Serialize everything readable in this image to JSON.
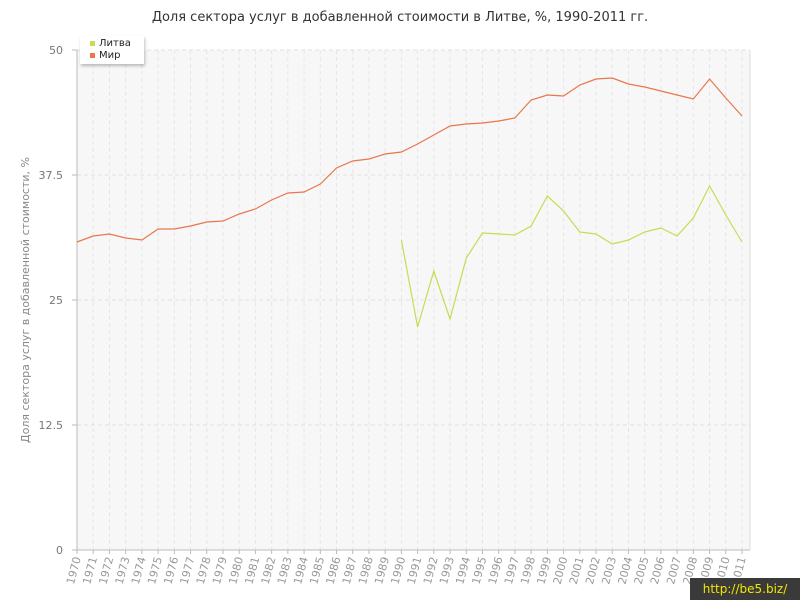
{
  "chart_data": {
    "type": "line",
    "title": "Доля сектора услуг в добавленной стоимости в Литве, %, 1990-2011 гг.",
    "xlabel": "",
    "ylabel": "Доля сектора услуг в добавленной стоимости, %",
    "ylim": [
      0,
      50
    ],
    "yticks": [
      "0",
      "12.5",
      "25",
      "37.5",
      "50"
    ],
    "grid": true,
    "legend_position": "top-left",
    "x": [
      "1970",
      "1971",
      "1972",
      "1973",
      "1974",
      "1975",
      "1976",
      "1977",
      "1978",
      "1979",
      "1980",
      "1981",
      "1982",
      "1983",
      "1984",
      "1985",
      "1986",
      "1987",
      "1988",
      "1989",
      "1990",
      "1991",
      "1992",
      "1993",
      "1994",
      "1995",
      "1996",
      "1997",
      "1998",
      "1999",
      "2000",
      "2001",
      "2002",
      "2003",
      "2004",
      "2005",
      "2006",
      "2007",
      "2008",
      "2009",
      "2010",
      "2011"
    ],
    "series": [
      {
        "name": "Литва",
        "color": "#c5dd52",
        "values": [
          null,
          null,
          null,
          null,
          null,
          null,
          null,
          null,
          null,
          null,
          null,
          null,
          null,
          null,
          null,
          null,
          null,
          null,
          null,
          null,
          31.0,
          22.3,
          27.9,
          23.1,
          29.2,
          31.7,
          31.6,
          31.5,
          32.4,
          35.4,
          33.9,
          31.8,
          31.6,
          30.6,
          31.0,
          31.8,
          32.2,
          31.4,
          33.2,
          36.4,
          33.5,
          30.8
        ]
      },
      {
        "name": "Мир",
        "color": "#e8774c",
        "values": [
          30.8,
          31.4,
          31.6,
          31.2,
          31.0,
          32.1,
          32.1,
          32.4,
          32.8,
          32.9,
          33.6,
          34.1,
          35.0,
          35.7,
          35.8,
          36.6,
          38.2,
          38.9,
          39.1,
          39.6,
          39.8,
          40.6,
          41.5,
          42.4,
          42.6,
          42.7,
          42.9,
          43.2,
          45.0,
          45.5,
          45.4,
          46.5,
          47.1,
          47.2,
          46.6,
          46.3,
          45.9,
          45.5,
          45.1,
          47.1,
          45.2,
          43.4
        ]
      }
    ]
  },
  "watermark": "http://be5.biz/"
}
